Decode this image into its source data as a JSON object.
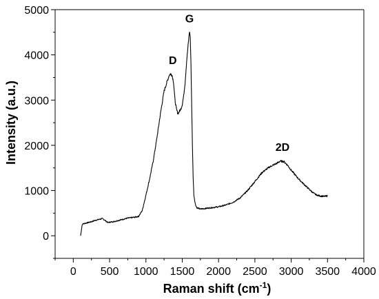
{
  "chart_data": {
    "type": "line",
    "title": "",
    "xlabel": "Raman shift (cm",
    "xlabel_superscript": "-1",
    "xlabel_suffix": ")",
    "ylabel": "Intensity (a.u.)",
    "xlim": [
      -250,
      4000
    ],
    "ylim": [
      -500,
      5000
    ],
    "x_ticks": [
      0,
      500,
      1000,
      1500,
      2000,
      2500,
      3000,
      3500,
      4000
    ],
    "x_tick_labels": [
      "0",
      "500",
      "1000",
      "1500",
      "2000",
      "2500",
      "3000",
      "3500",
      "4000"
    ],
    "y_ticks": [
      0,
      1000,
      2000,
      3000,
      4000,
      5000
    ],
    "y_tick_labels": [
      "0",
      "1000",
      "2000",
      "3000",
      "4000",
      "5000"
    ],
    "grid": false,
    "legend": "none",
    "line_color": "#000000",
    "series": [
      {
        "x": [
          100,
          110,
          120,
          130,
          150,
          200,
          250,
          300,
          350,
          400,
          430,
          460,
          480,
          500,
          550,
          600,
          650,
          700,
          750,
          800,
          850,
          900,
          950,
          1000,
          1050,
          1100,
          1150,
          1200,
          1250,
          1300,
          1320,
          1340,
          1360,
          1380,
          1400,
          1420,
          1440,
          1460,
          1480,
          1500,
          1520,
          1540,
          1560,
          1580,
          1600,
          1610,
          1620,
          1630,
          1640,
          1650,
          1660,
          1680,
          1700,
          1750,
          1800,
          1900,
          2000,
          2100,
          2200,
          2300,
          2400,
          2500,
          2600,
          2700,
          2800,
          2850,
          2900,
          2950,
          3000,
          3100,
          3200,
          3300,
          3350,
          3400,
          3450,
          3500
        ],
        "y": [
          0,
          100,
          230,
          260,
          270,
          290,
          310,
          340,
          360,
          380,
          350,
          310,
          290,
          300,
          310,
          330,
          350,
          370,
          390,
          400,
          410,
          430,
          560,
          900,
          1250,
          1650,
          2150,
          2700,
          3200,
          3450,
          3550,
          3580,
          3550,
          3400,
          3000,
          2800,
          2700,
          2750,
          2800,
          2900,
          3100,
          3400,
          3850,
          4200,
          4520,
          4400,
          3800,
          2900,
          2000,
          1300,
          900,
          700,
          620,
          590,
          600,
          620,
          640,
          680,
          740,
          840,
          1000,
          1200,
          1400,
          1520,
          1600,
          1650,
          1640,
          1560,
          1450,
          1260,
          1100,
          950,
          900,
          880,
          870,
          880
        ]
      }
    ],
    "annotations": [
      {
        "text": "D",
        "x": 1370,
        "y": 3800
      },
      {
        "text": "G",
        "x": 1600,
        "y": 4720
      },
      {
        "text": "2D",
        "x": 2880,
        "y": 1880
      }
    ]
  }
}
